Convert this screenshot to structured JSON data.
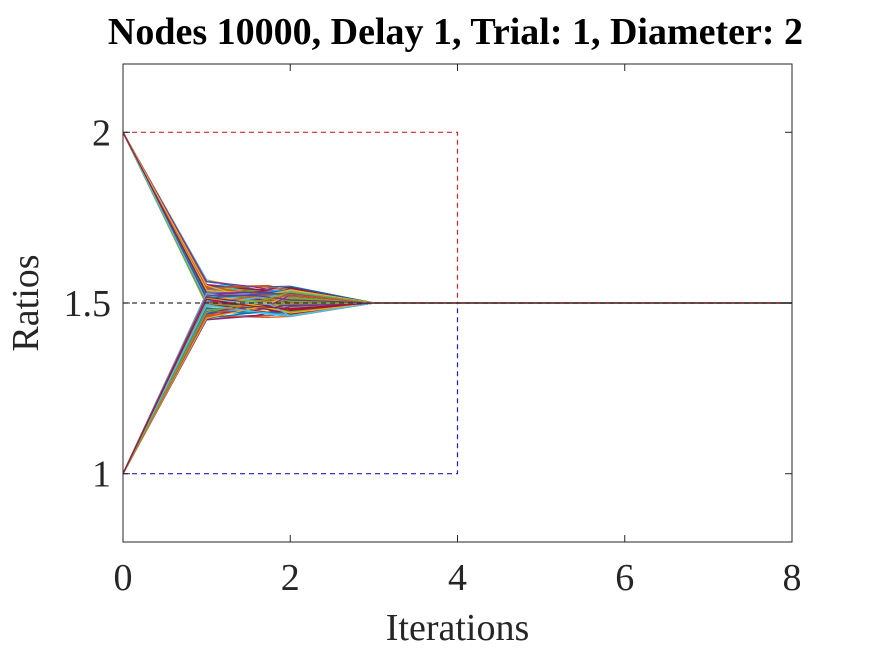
{
  "chart_data": {
    "type": "line",
    "title": "Nodes 10000, Delay 1, Trial: 1, Diameter: 2",
    "xlabel": "Iterations",
    "ylabel": "Ratios",
    "xlim": [
      0,
      8
    ],
    "ylim": [
      0.8,
      2.2
    ],
    "xticks": [
      0,
      2,
      4,
      6,
      8
    ],
    "xtick_labels": [
      "0",
      "2",
      "4",
      "6",
      "8"
    ],
    "yticks": [
      1,
      1.5,
      2
    ],
    "ytick_labels": [
      "1",
      "1.5",
      "2"
    ],
    "grid": false,
    "legend": "none",
    "note_series": "Many node-ratio trajectories converging to 1.5; upper group starts at 2, lower group starts at 1.",
    "upper_group": {
      "x": [
        0,
        1,
        2,
        3,
        4,
        8
      ],
      "start": 2,
      "iter1_range": [
        1.49,
        1.57
      ],
      "iter2_range": [
        1.47,
        1.55
      ],
      "end": 1.5
    },
    "lower_group": {
      "x": [
        0,
        1,
        2,
        3,
        4,
        8
      ],
      "start": 1,
      "iter1_range": [
        1.45,
        1.53
      ],
      "iter2_range": [
        1.46,
        1.54
      ],
      "end": 1.5
    },
    "reference_lines": [
      {
        "name": "upper-bound",
        "color": "#d62728",
        "points": [
          [
            0,
            2
          ],
          [
            4,
            2
          ],
          [
            4,
            1.5
          ]
        ]
      },
      {
        "name": "lower-bound",
        "color": "#1f1fd6",
        "points": [
          [
            0,
            1
          ],
          [
            4,
            1
          ],
          [
            4,
            1.5
          ]
        ]
      },
      {
        "name": "target",
        "color": "#333333",
        "points": [
          [
            0,
            1.5
          ],
          [
            8,
            1.5
          ]
        ]
      }
    ],
    "series_colors": [
      "#0072bd",
      "#d95319",
      "#edb120",
      "#7e2f8e",
      "#77ac30",
      "#4dbeee",
      "#a2142f"
    ]
  }
}
